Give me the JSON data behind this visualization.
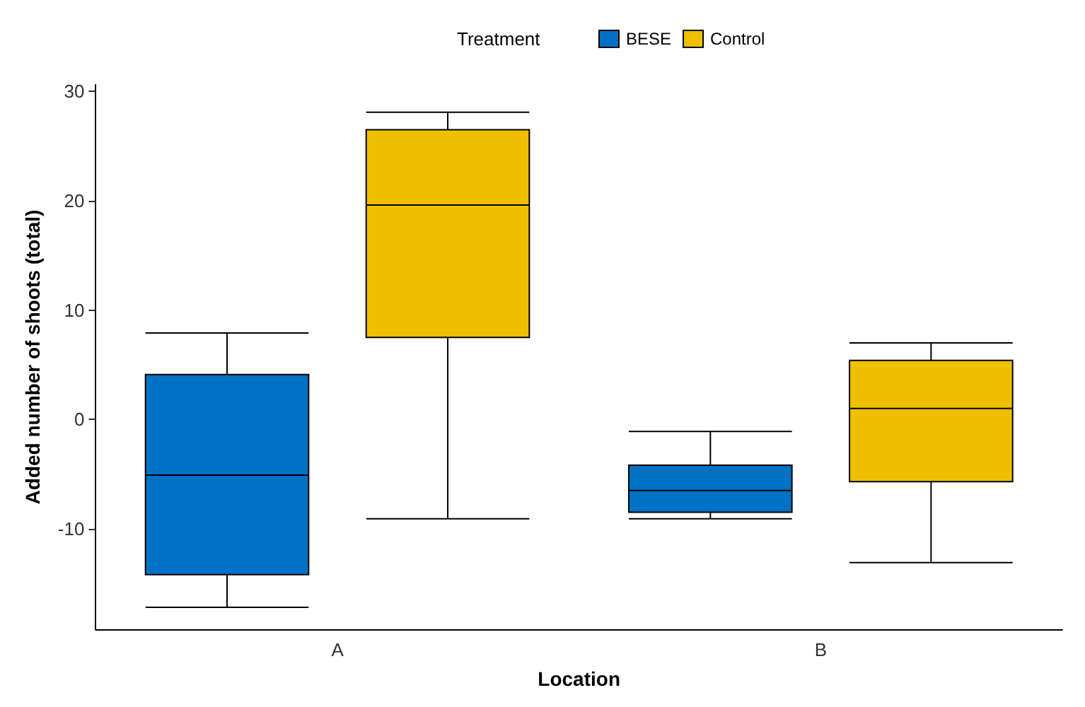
{
  "chart_data": {
    "type": "box",
    "xlabel": "Location",
    "ylabel": "Added number of shoots (total)",
    "legend_title": "Treatment",
    "legend": "top",
    "grid": false,
    "categories": [
      "A",
      "B"
    ],
    "ylim": [
      -19.2,
      30.6
    ],
    "yticks": [
      -10,
      0,
      10,
      20,
      30
    ],
    "series": [
      {
        "name": "BESE",
        "color": "#0072c6",
        "boxes": [
          {
            "low": -17.2,
            "q1": -14.2,
            "median": -5.1,
            "q3": 4.1,
            "high": 7.9
          },
          {
            "low": -9.1,
            "q1": -8.5,
            "median": -6.5,
            "q3": -4.2,
            "high": -1.1
          }
        ]
      },
      {
        "name": "Control",
        "color": "#efc000",
        "boxes": [
          {
            "low": -9.1,
            "q1": 7.5,
            "median": 19.6,
            "q3": 26.5,
            "high": 28.1
          },
          {
            "low": -13.1,
            "q1": -5.7,
            "median": 1.0,
            "q3": 5.4,
            "high": 7.0
          }
        ]
      }
    ]
  }
}
